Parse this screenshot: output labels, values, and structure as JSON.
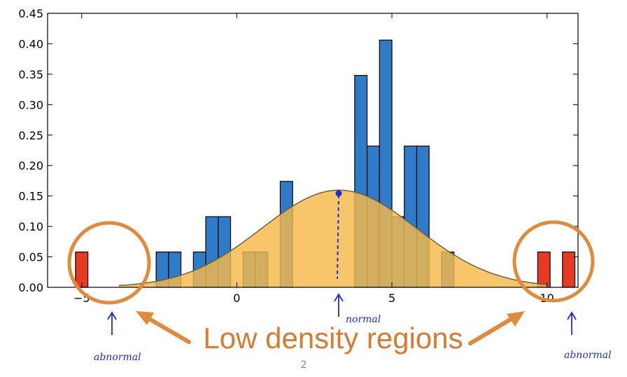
{
  "colors": {
    "histogram": "#2f7bc8",
    "outlier": "#e63a22",
    "density_fill": "#f5b94a",
    "density_line": "#6b6340",
    "annotation": "#e08b3c",
    "handwriting": "#1e2bd6"
  },
  "chart_data": {
    "type": "bar",
    "title": "",
    "xlabel": "",
    "ylabel": "",
    "xlim": [
      -6.1,
      11.0
    ],
    "ylim": [
      0,
      0.45
    ],
    "grid": false,
    "x_ticks": [
      {
        "value": -5,
        "label": "−5"
      },
      {
        "value": 0,
        "label": "0"
      },
      {
        "value": 5,
        "label": "5"
      },
      {
        "value": 10,
        "label": "10"
      }
    ],
    "y_ticks": [
      {
        "value": 0.0,
        "label": "0.00"
      },
      {
        "value": 0.05,
        "label": "0.05"
      },
      {
        "value": 0.1,
        "label": "0.10"
      },
      {
        "value": 0.15,
        "label": "0.15"
      },
      {
        "value": 0.2,
        "label": "0.20"
      },
      {
        "value": 0.25,
        "label": "0.25"
      },
      {
        "value": 0.3,
        "label": "0.30"
      },
      {
        "value": 0.35,
        "label": "0.35"
      },
      {
        "value": 0.4,
        "label": "0.40"
      },
      {
        "value": 0.45,
        "label": "0.45"
      }
    ],
    "histogram_bins": [
      {
        "x0": -2.6,
        "x1": -2.2,
        "y": 0.058
      },
      {
        "x0": -2.2,
        "x1": -1.8,
        "y": 0.058
      },
      {
        "x0": -1.4,
        "x1": -1.0,
        "y": 0.058
      },
      {
        "x0": -1.0,
        "x1": -0.6,
        "y": 0.116
      },
      {
        "x0": -0.6,
        "x1": -0.2,
        "y": 0.116
      },
      {
        "x0": 0.2,
        "x1": 0.6,
        "y": 0.058
      },
      {
        "x0": 0.6,
        "x1": 1.0,
        "y": 0.058
      },
      {
        "x0": 1.4,
        "x1": 1.8,
        "y": 0.174
      },
      {
        "x0": 3.8,
        "x1": 4.2,
        "y": 0.348
      },
      {
        "x0": 4.2,
        "x1": 4.6,
        "y": 0.232
      },
      {
        "x0": 4.6,
        "x1": 5.0,
        "y": 0.406
      },
      {
        "x0": 5.0,
        "x1": 5.4,
        "y": 0.116
      },
      {
        "x0": 5.4,
        "x1": 5.8,
        "y": 0.232
      },
      {
        "x0": 5.8,
        "x1": 6.2,
        "y": 0.232
      },
      {
        "x0": 6.6,
        "x1": 7.0,
        "y": 0.058
      }
    ],
    "outlier_bins": [
      {
        "x0": -5.2,
        "x1": -4.8,
        "y": 0.058
      },
      {
        "x0": 9.7,
        "x1": 10.1,
        "y": 0.058
      },
      {
        "x0": 10.5,
        "x1": 10.9,
        "y": 0.058
      }
    ],
    "density_curve": {
      "mean": 3.3,
      "std": 2.5
    },
    "normal_point": {
      "x": 2.9,
      "y": 0.155
    },
    "annotations": {
      "headline": "Low density regions",
      "normal": "normal",
      "abnormal_left": "abnormal",
      "abnormal_right": "abnormal"
    }
  },
  "footer": {
    "page_number": "2"
  }
}
